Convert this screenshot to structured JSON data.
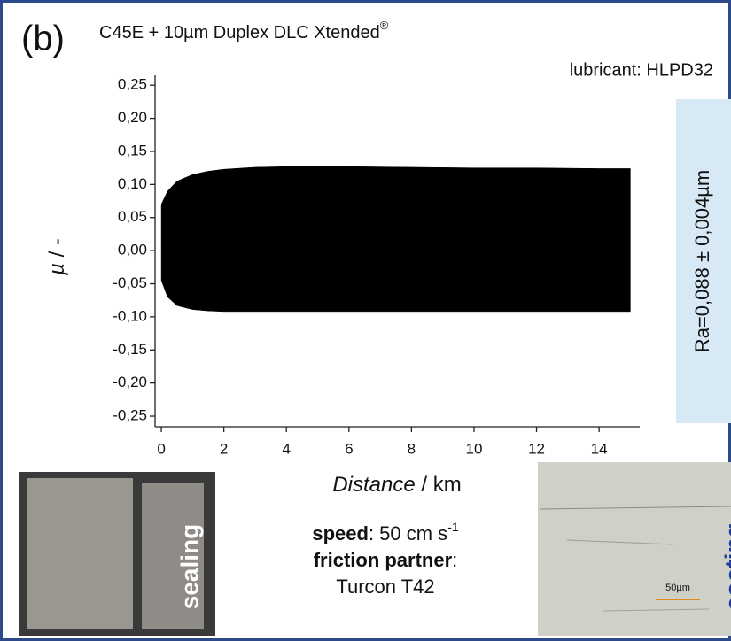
{
  "chart_data": {
    "type": "band",
    "panel_label": "(b)",
    "title": "C45E + 10µm Duplex DLC Xtended",
    "title_sup": "®",
    "annotation": "lubricant: HLPD32",
    "roughness": "Ra=0,088 ± 0,004µm",
    "x_label_italic": "Distance",
    "x_label_unit": " / km",
    "y_label_italic": "µ",
    "y_label_unit": " / -",
    "x": [
      0,
      0.2,
      0.5,
      1,
      1.5,
      2,
      3,
      4,
      6,
      8,
      10,
      12,
      14,
      15
    ],
    "series": [
      {
        "color": "#000000",
        "values": [
          0.07,
          0.09,
          0.105,
          0.115,
          0.12,
          0.123,
          0.126,
          0.127,
          0.127,
          0.126,
          0.125,
          0.125,
          0.124,
          0.124
        ]
      },
      {
        "color": "#000000",
        "values": [
          -0.045,
          -0.07,
          -0.083,
          -0.089,
          -0.091,
          -0.092,
          -0.092,
          -0.092,
          -0.092,
          -0.092,
          -0.092,
          -0.092,
          -0.092,
          -0.092
        ]
      }
    ],
    "xlim": [
      -0.2,
      15.3
    ],
    "ylim": [
      -0.266,
      0.265
    ],
    "xticks": [
      0,
      2,
      4,
      6,
      8,
      10,
      12,
      14
    ],
    "yticks": [
      {
        "value": 0.25,
        "label": "0,25"
      },
      {
        "value": 0.2,
        "label": "0,20"
      },
      {
        "value": 0.15,
        "label": "0,15"
      },
      {
        "value": 0.1,
        "label": "0,10"
      },
      {
        "value": 0.05,
        "label": "0,05"
      },
      {
        "value": 0,
        "label": "0,00"
      },
      {
        "value": -0.05,
        "label": "-0,05"
      },
      {
        "value": -0.1,
        "label": "-0,10"
      },
      {
        "value": -0.15,
        "label": "-0,15"
      },
      {
        "value": -0.2,
        "label": "-0,20"
      },
      {
        "value": -0.25,
        "label": "-0,25"
      }
    ]
  },
  "conditions": {
    "speed_label": "speed",
    "speed_value": ": 50 cm s",
    "speed_sup": "-1",
    "partner_label": "friction partner",
    "partner_colon": ":",
    "partner_value": "Turcon T42"
  },
  "photos": {
    "left_label": "sealing",
    "right_label": "coating",
    "scale_bar": "50µm"
  }
}
